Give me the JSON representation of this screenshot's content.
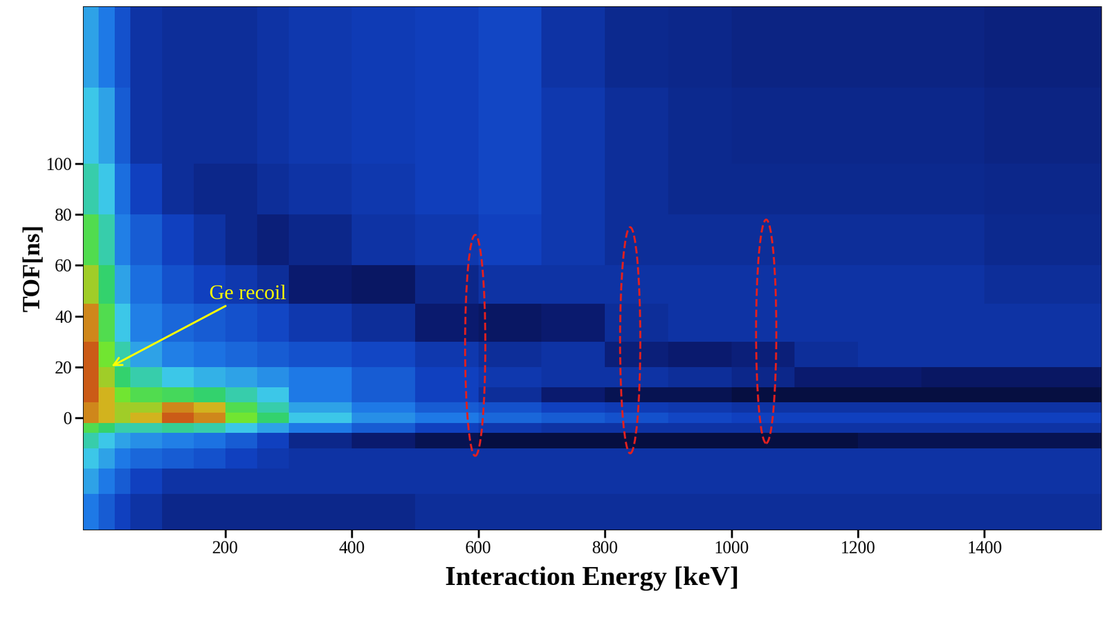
{
  "chart_data": {
    "type": "heatmap",
    "x_label": "Interaction Energy [keV]",
    "y_label": "TOF[ns]",
    "xlim": [
      -25,
      1585
    ],
    "ylim": [
      -44,
      162
    ],
    "xticks": [
      200,
      400,
      600,
      800,
      1000,
      1200,
      1400
    ],
    "yticks": [
      0,
      20,
      40,
      60,
      80,
      100
    ],
    "grid": false,
    "color_range": [
      0,
      10
    ],
    "x_edges": [
      -25,
      0,
      25,
      50,
      100,
      150,
      200,
      250,
      300,
      400,
      500,
      600,
      700,
      800,
      900,
      1000,
      1100,
      1200,
      1300,
      1400,
      1500,
      1585
    ],
    "y_edges": [
      -44,
      -30,
      -20,
      -12,
      -6,
      -2,
      2,
      6,
      12,
      20,
      30,
      45,
      60,
      80,
      100,
      130,
      162
    ],
    "cells": [
      [
        4.5,
        4,
        3.5,
        3,
        2.5,
        2.5,
        2.5,
        2.5,
        2.5,
        2.5,
        2.8,
        2.8,
        2.8,
        2.8,
        2.8,
        2.8,
        2.8,
        2.8,
        2.8,
        2.8,
        2.8
      ],
      [
        5,
        4.5,
        4,
        3.5,
        3,
        3,
        3,
        3,
        3,
        3,
        3,
        3,
        3,
        3,
        3,
        3,
        3,
        3,
        3,
        3,
        3
      ],
      [
        5.5,
        5,
        4.5,
        4.2,
        4,
        3.8,
        3.5,
        3.2,
        3,
        3,
        3,
        3,
        3,
        3,
        3,
        3,
        3,
        3,
        3,
        3,
        3
      ],
      [
        6,
        5.5,
        5,
        4.8,
        4.6,
        4.4,
        4,
        3.5,
        2.5,
        2,
        1.5,
        1.2,
        1.2,
        1.2,
        1.2,
        1.2,
        1.2,
        1.5,
        1.5,
        1.5,
        1.5
      ],
      [
        7,
        6.5,
        6,
        6,
        6.2,
        6,
        5.5,
        5,
        4.5,
        4,
        3.5,
        3.2,
        3,
        3,
        3,
        3,
        3,
        3,
        3,
        3,
        3
      ],
      [
        9,
        8.5,
        8,
        8.5,
        9.5,
        9,
        7.5,
        6.5,
        5.5,
        4.8,
        4.5,
        4.2,
        4,
        3.8,
        3.6,
        3.5,
        3.5,
        3.5,
        3.5,
        3.5,
        3.5
      ],
      [
        9,
        8.5,
        8,
        8,
        9,
        8.5,
        7,
        6,
        5,
        4.5,
        4,
        3.8,
        3.5,
        3.3,
        3.2,
        3,
        3,
        3,
        3,
        3,
        3
      ],
      [
        9.5,
        8.5,
        7.5,
        7,
        6.8,
        6.5,
        6,
        5.5,
        4.5,
        4,
        3.5,
        2.8,
        2,
        1.5,
        1.5,
        1.2,
        1.2,
        1.2,
        1.2,
        1.2,
        1.2
      ],
      [
        9.5,
        8,
        6.5,
        6,
        5.5,
        5.2,
        5,
        4.8,
        4.5,
        4,
        3.5,
        3.2,
        3,
        3,
        2.8,
        2.5,
        2,
        2,
        1.8,
        1.8,
        1.8
      ],
      [
        9.5,
        7.5,
        6,
        5,
        4.6,
        4.4,
        4.2,
        4,
        3.8,
        3.6,
        3.2,
        2.8,
        3,
        2.2,
        2,
        2.2,
        2.8,
        3,
        3,
        3,
        3
      ],
      [
        9,
        7,
        5.5,
        4.6,
        4.2,
        4,
        3.8,
        3.6,
        3.2,
        2.8,
        2,
        1.8,
        2,
        2.8,
        3,
        3,
        3,
        3,
        3,
        3,
        3
      ],
      [
        8,
        6.5,
        5,
        4.3,
        3.8,
        3.5,
        3.2,
        2.8,
        2,
        1.8,
        2.5,
        3,
        3,
        3,
        3,
        3,
        3,
        3,
        3,
        2.8,
        2.8
      ],
      [
        7,
        6,
        4.6,
        4,
        3.5,
        3,
        2.5,
        2.2,
        2.5,
        3,
        3.2,
        3.5,
        3.2,
        2.8,
        2.8,
        2.8,
        2.8,
        2.8,
        2.8,
        2.6,
        2.6
      ],
      [
        6,
        5.5,
        4.3,
        3.5,
        2.8,
        2.5,
        2.5,
        2.8,
        3,
        3.2,
        3.4,
        3.6,
        3.2,
        2.8,
        2.6,
        2.6,
        2.6,
        2.6,
        2.6,
        2.5,
        2.5
      ],
      [
        5.5,
        5,
        4,
        3,
        2.8,
        2.8,
        2.8,
        3,
        3.2,
        3.3,
        3.4,
        3.6,
        3.2,
        2.8,
        2.6,
        2.5,
        2.5,
        2.5,
        2.5,
        2.4,
        2.4
      ],
      [
        5,
        4.5,
        3.8,
        3,
        2.8,
        2.8,
        2.8,
        3,
        3.2,
        3.3,
        3.4,
        3.6,
        3,
        2.6,
        2.5,
        2.4,
        2.4,
        2.4,
        2.4,
        2.3,
        2.3
      ]
    ],
    "annotations": [
      {
        "text": "Ge recoil",
        "point": [
          18,
          20
        ],
        "color": "#ffff00"
      }
    ],
    "highlights": [
      {
        "energy": 595,
        "tof_range": [
          -15,
          72
        ],
        "color": "#e02020"
      },
      {
        "energy": 840,
        "tof_range": [
          -14,
          75
        ],
        "color": "#e02020"
      },
      {
        "energy": 1055,
        "tof_range": [
          -10,
          78
        ],
        "color": "#e02020"
      }
    ]
  }
}
